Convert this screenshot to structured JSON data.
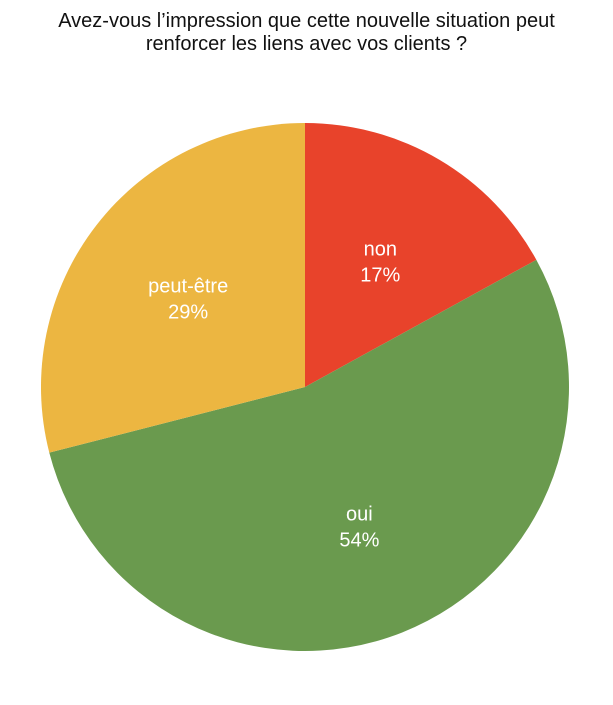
{
  "chart_data": {
    "type": "pie",
    "title": "Avez-vous l’impression que cette nouvelle situation peut renforcer les liens avec vos clients ?",
    "start_angle": "12 o'clock",
    "direction": "clockwise",
    "slices": [
      {
        "label": "non",
        "value": 17,
        "display": "17%",
        "color": "#e8432b"
      },
      {
        "label": "oui",
        "value": 54,
        "display": "54%",
        "color": "#6a9a4e"
      },
      {
        "label": "peut-être",
        "value": 29,
        "display": "29%",
        "color": "#ecb641"
      }
    ]
  }
}
